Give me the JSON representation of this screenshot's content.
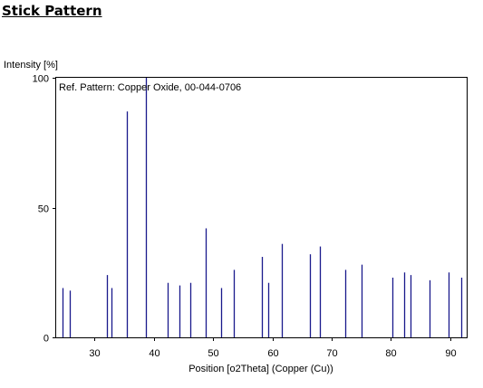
{
  "page": {
    "title": "Stick Pattern"
  },
  "chart_data": {
    "type": "bar",
    "chart_style": "stick",
    "annotation": "Ref. Pattern: Copper Oxide, 00-044-0706",
    "xlabel": "Position [o2Theta] (Copper (Cu))",
    "ylabel": "Intensity [%]",
    "xlim": [
      23.5,
      92.8
    ],
    "ylim": [
      0,
      100
    ],
    "xticks": [
      30,
      40,
      50,
      60,
      70,
      80,
      90
    ],
    "yticks": [
      0,
      50,
      100
    ],
    "grid": false,
    "stick_color": "#1a1a8c",
    "series": [
      {
        "x": [
          24.6,
          25.8,
          32.1,
          32.8,
          35.4,
          38.7,
          42.3,
          44.3,
          46.1,
          48.8,
          51.3,
          53.5,
          58.2,
          59.3,
          61.6,
          66.3,
          68.0,
          72.3,
          75.1,
          80.2,
          82.3,
          83.3,
          86.6,
          89.8,
          91.9
        ],
        "y": [
          19,
          18,
          24,
          19,
          87,
          100,
          21,
          20,
          21,
          42,
          19,
          26,
          31,
          21,
          36,
          32,
          35,
          26,
          28,
          23,
          25,
          24,
          22,
          25,
          23
        ]
      }
    ]
  }
}
